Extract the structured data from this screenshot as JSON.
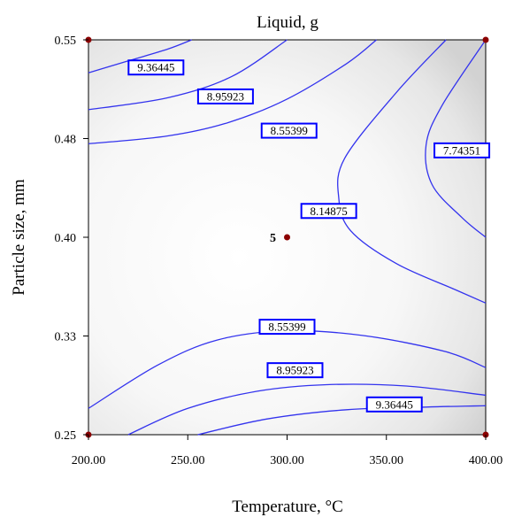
{
  "chart_data": {
    "type": "contour",
    "title": "Liquid, g",
    "xlabel": "Temperature, °C",
    "ylabel": "Particle size, mm",
    "xlim": [
      200,
      400
    ],
    "ylim": [
      0.25,
      0.55
    ],
    "x_ticks": [
      "200.00",
      "250.00",
      "300.00",
      "350.00",
      "400.00"
    ],
    "y_ticks": [
      "0.25",
      "0.33",
      "0.40",
      "0.48",
      "0.55"
    ],
    "contour_levels": [
      {
        "label": "9.36445",
        "lines": [
          [
            [
              200,
              0.525
            ],
            [
              220,
              0.534
            ],
            [
              240,
              0.543
            ],
            [
              252,
              0.55
            ]
          ],
          [
            [
              255,
              0.25
            ],
            [
              290,
              0.262
            ],
            [
              330,
              0.269
            ],
            [
              370,
              0.271
            ],
            [
              400,
              0.272
            ]
          ]
        ]
      },
      {
        "label": "8.95923",
        "lines": [
          [
            [
              200,
              0.497
            ],
            [
              240,
              0.506
            ],
            [
              272,
              0.522
            ],
            [
              300,
              0.55
            ]
          ],
          [
            [
              220,
              0.25
            ],
            [
              250,
              0.27
            ],
            [
              285,
              0.283
            ],
            [
              320,
              0.288
            ],
            [
              360,
              0.287
            ],
            [
              400,
              0.28
            ]
          ]
        ]
      },
      {
        "label": "8.55399",
        "lines": [
          [
            [
              200,
              0.471
            ],
            [
              240,
              0.477
            ],
            [
              270,
              0.487
            ],
            [
              300,
              0.505
            ],
            [
              330,
              0.532
            ],
            [
              345,
              0.55
            ]
          ],
          [
            [
              200,
              0.27
            ],
            [
              235,
              0.303
            ],
            [
              265,
              0.322
            ],
            [
              300,
              0.329
            ],
            [
              340,
              0.325
            ],
            [
              380,
              0.313
            ],
            [
              400,
              0.301
            ]
          ]
        ]
      },
      {
        "label": "8.14875",
        "lines": [
          [
            [
              380,
              0.55
            ],
            [
              355,
              0.51
            ],
            [
              329,
              0.46
            ],
            [
              326,
              0.43
            ],
            [
              332,
              0.405
            ],
            [
              355,
              0.38
            ],
            [
              385,
              0.36
            ],
            [
              400,
              0.35
            ]
          ]
        ]
      },
      {
        "label": "7.74351",
        "lines": [
          [
            [
              400,
              0.55
            ],
            [
              378,
              0.5
            ],
            [
              370,
              0.47
            ],
            [
              373,
              0.44
            ],
            [
              388,
              0.415
            ],
            [
              400,
              0.4
            ]
          ]
        ]
      }
    ],
    "contour_label_positions": [
      {
        "label": "9.36445",
        "x": 234,
        "y": 0.529
      },
      {
        "label": "8.95923",
        "x": 269,
        "y": 0.507
      },
      {
        "label": "8.55399",
        "x": 301,
        "y": 0.481
      },
      {
        "label": "7.74351",
        "x": 388,
        "y": 0.466
      },
      {
        "label": "8.14875",
        "x": 321,
        "y": 0.42
      },
      {
        "label": "8.55399",
        "x": 300,
        "y": 0.332
      },
      {
        "label": "8.95923",
        "x": 304,
        "y": 0.299
      },
      {
        "label": "9.36445",
        "x": 354,
        "y": 0.273
      }
    ],
    "design_points": [
      {
        "x": 200,
        "y": 0.55
      },
      {
        "x": 400,
        "y": 0.55
      },
      {
        "x": 200,
        "y": 0.25
      },
      {
        "x": 400,
        "y": 0.25
      },
      {
        "x": 300,
        "y": 0.4,
        "label": "5"
      }
    ],
    "colors": {
      "contour": "#3333ee",
      "label_border": "#0000ff",
      "point": "#8b0000"
    }
  }
}
